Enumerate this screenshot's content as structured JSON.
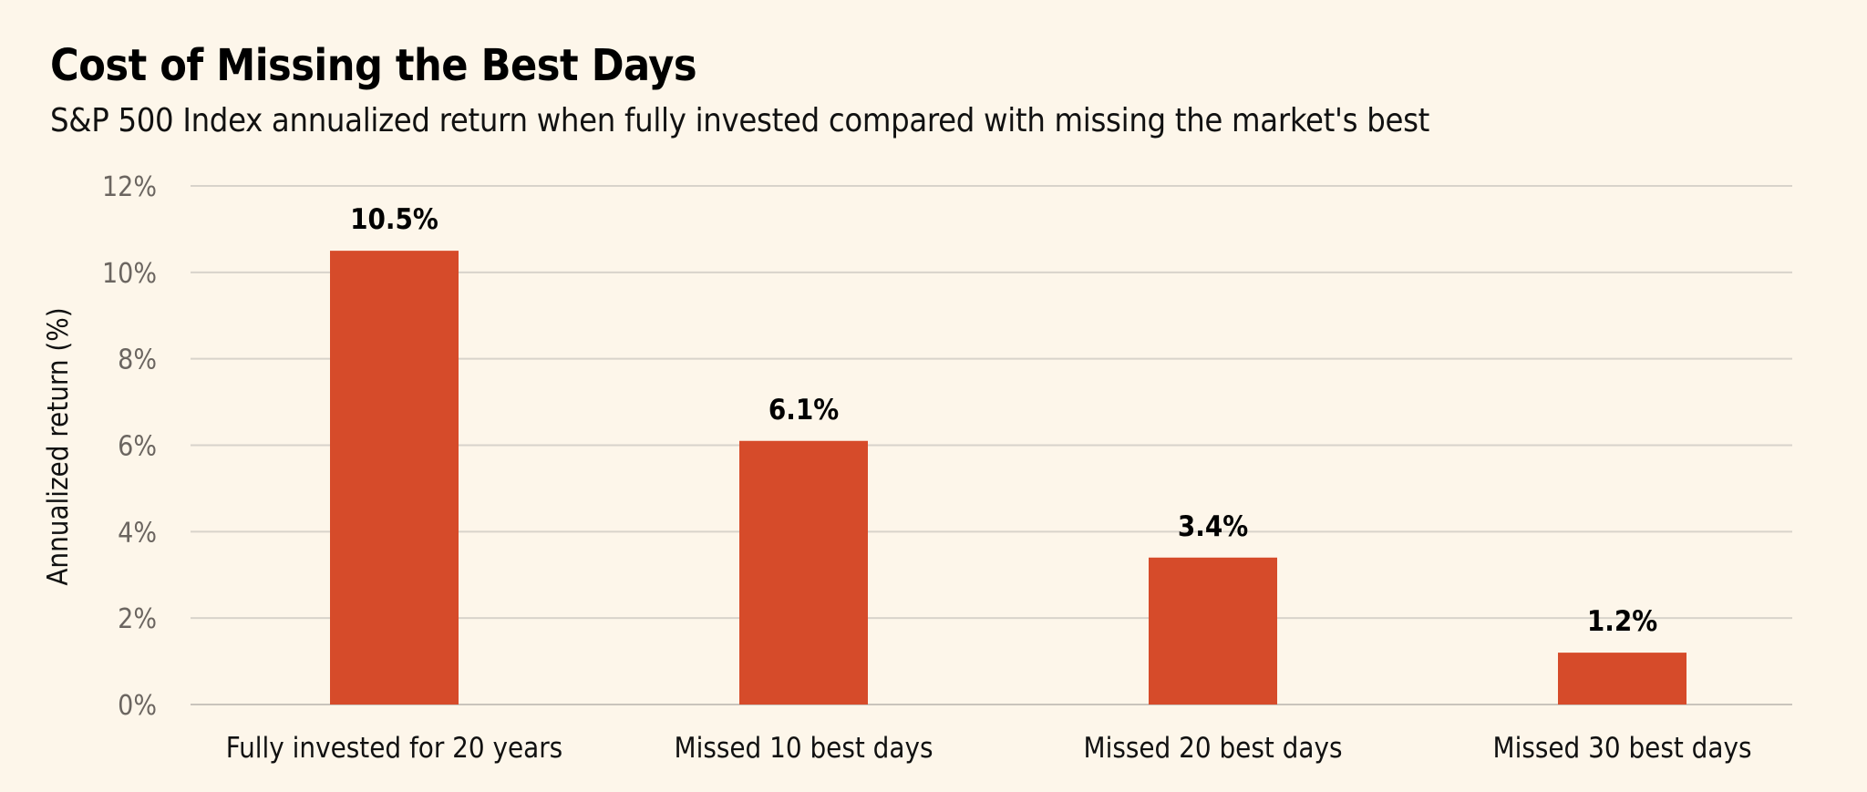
{
  "chart_data": {
    "type": "bar",
    "title": "Cost of Missing the Best Days",
    "subtitle": "S&P 500 Index annualized return when fully invested compared with missing the market's best",
    "xlabel": "",
    "ylabel": "Annualized return (%)",
    "ylim": [
      0,
      12
    ],
    "yticks": [
      0,
      2,
      4,
      6,
      8,
      10,
      12
    ],
    "ytick_labels": [
      "0%",
      "2%",
      "4%",
      "6%",
      "8%",
      "10%",
      "12%"
    ],
    "grid": true,
    "categories": [
      "Fully invested for 20 years",
      "Missed 10 best days",
      "Missed 20 best days",
      "Missed 30 best days"
    ],
    "values": [
      10.5,
      6.1,
      3.4,
      1.2
    ],
    "data_labels": [
      "10.5%",
      "6.1%",
      "3.4%",
      "1.2%"
    ],
    "bar_color": "#D64B2A"
  }
}
